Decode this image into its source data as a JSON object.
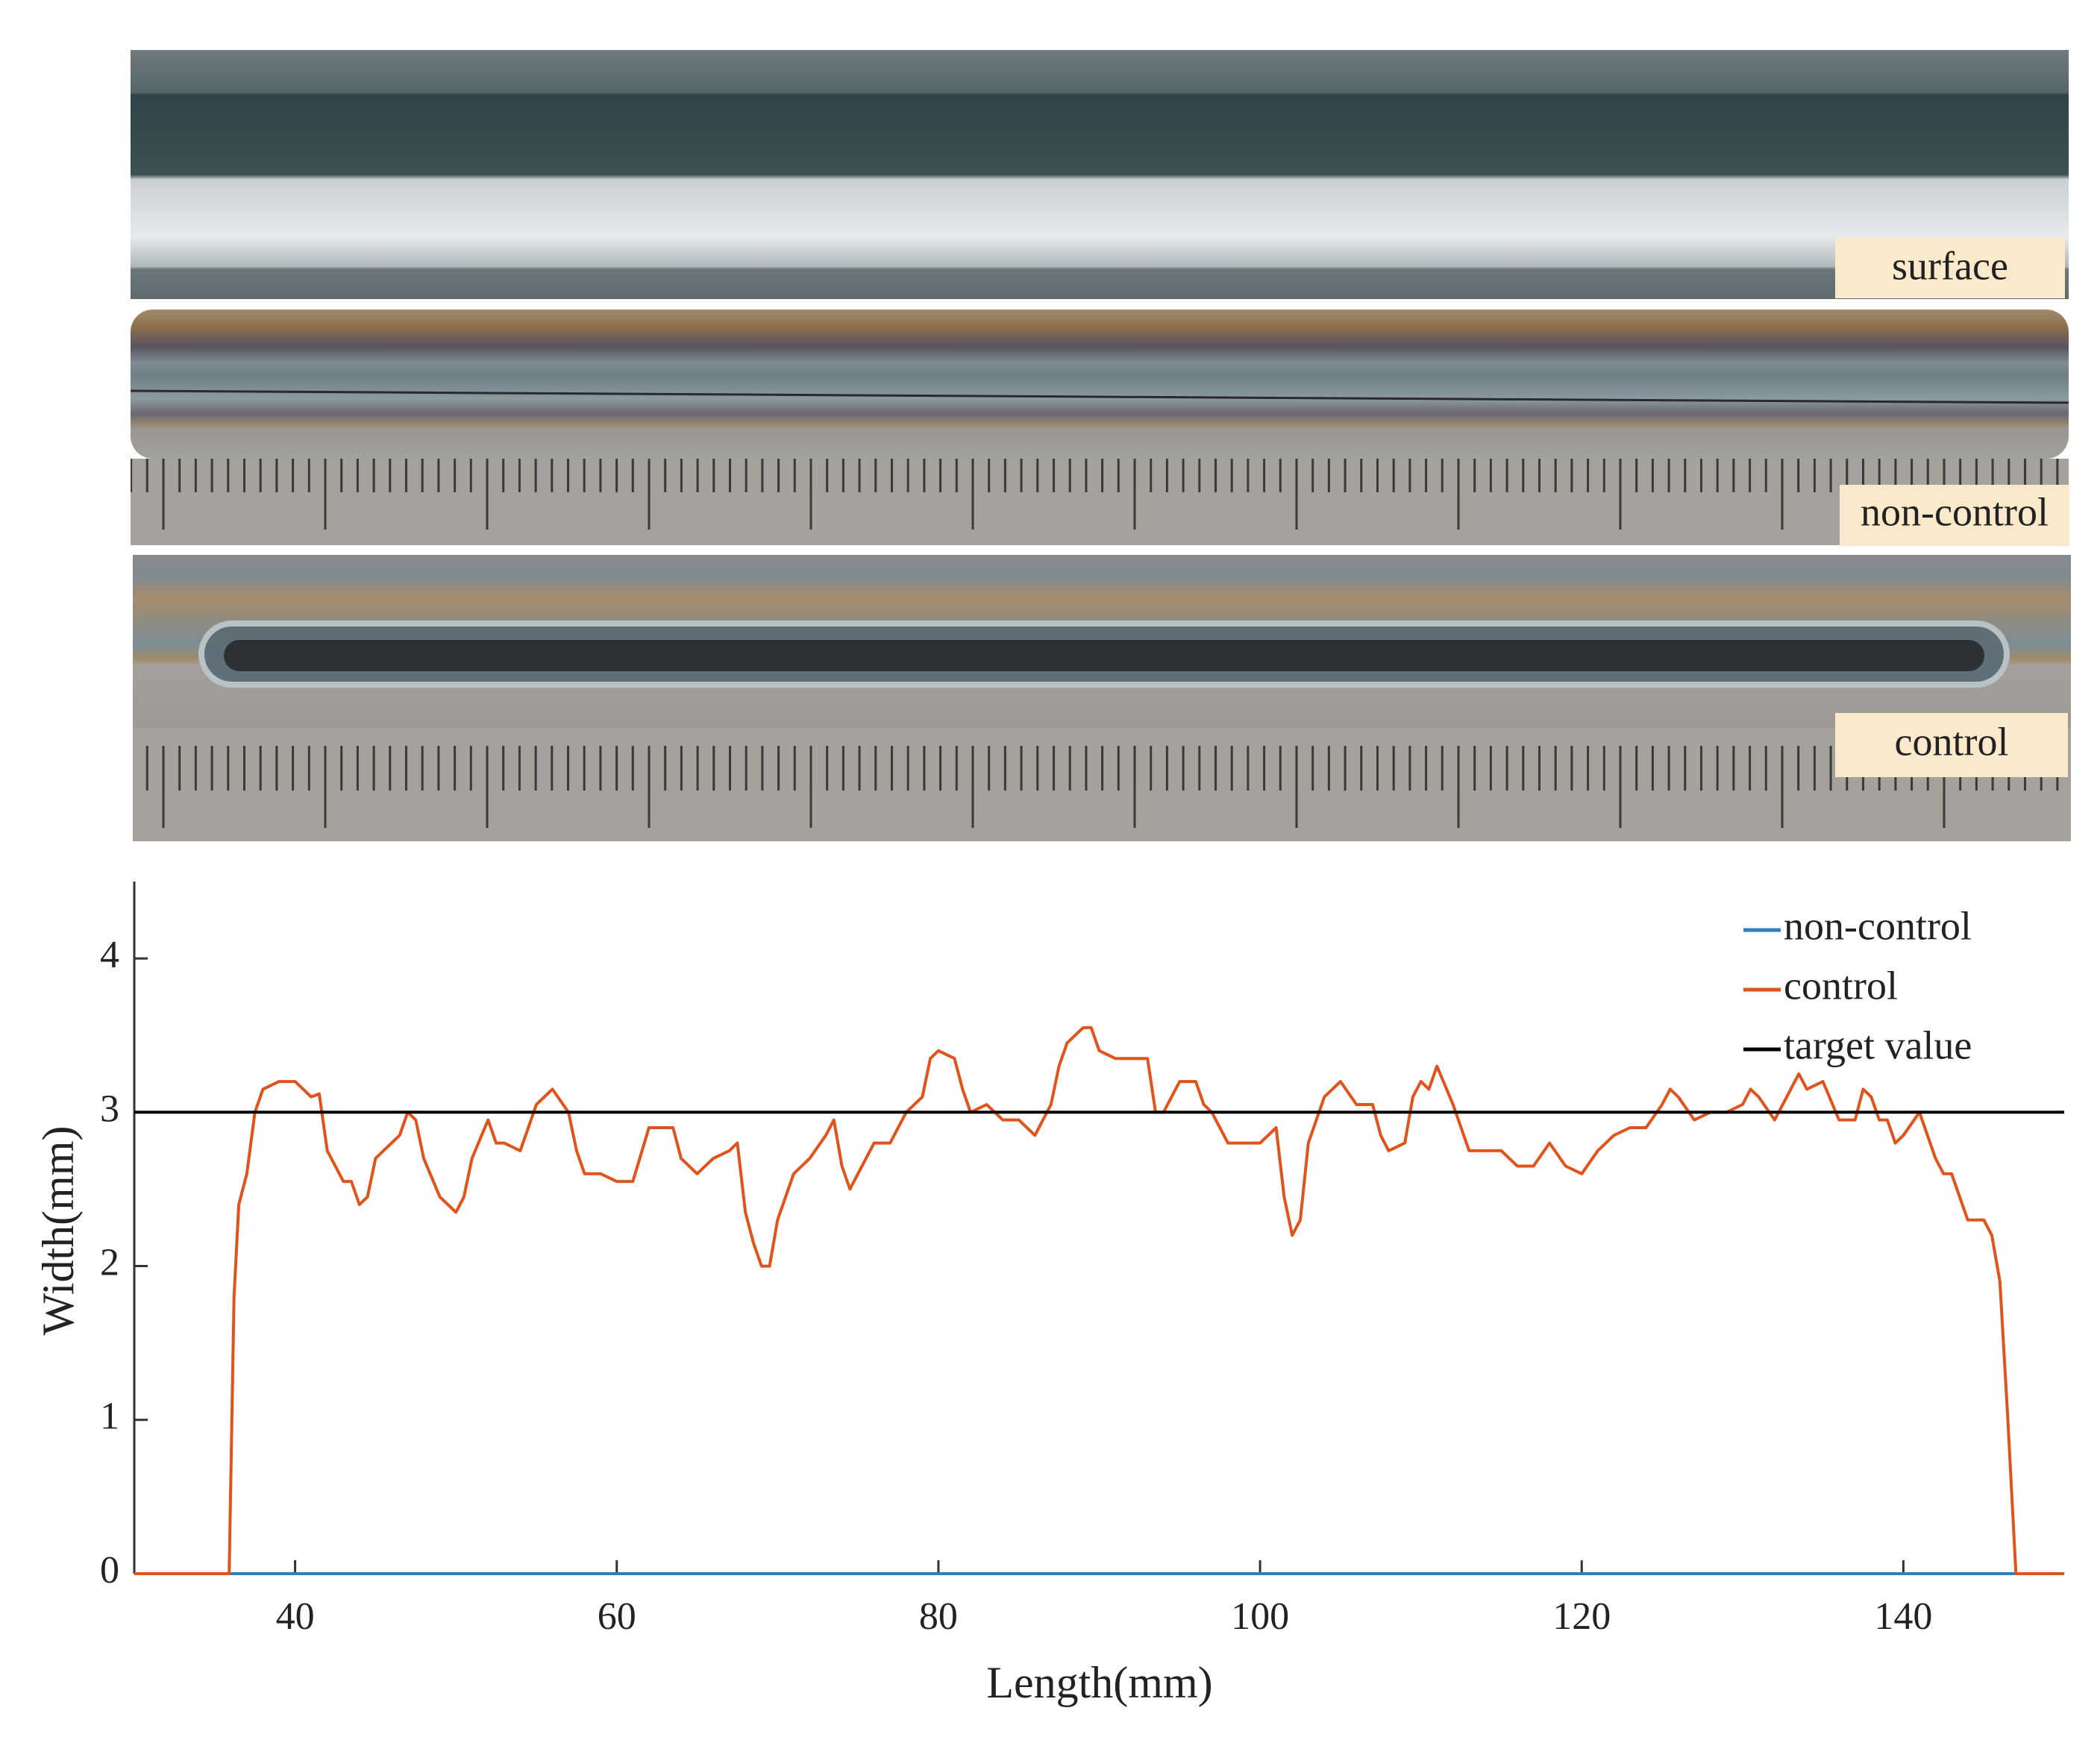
{
  "photo_labels": [
    "surface",
    "non-control",
    "control"
  ],
  "chart_data": {
    "type": "line",
    "xlabel": "Length(mm)",
    "ylabel": "Width(mm)",
    "xlim": [
      30,
      150
    ],
    "ylim": [
      0,
      4.5
    ],
    "xticks": [
      40,
      60,
      80,
      100,
      120,
      140
    ],
    "yticks": [
      0,
      1,
      2,
      3,
      4
    ],
    "legend": "upper right",
    "series": [
      {
        "name": "non-control",
        "color": "#2f7fc1",
        "x": [
          30,
          150
        ],
        "values": [
          0,
          0
        ]
      },
      {
        "name": "control",
        "color": "#e0541c",
        "x": [
          30,
          35.9,
          36.2,
          36.5,
          37,
          37.5,
          38,
          39,
          40,
          41,
          41.5,
          42,
          43,
          43.5,
          44,
          44.5,
          45,
          46,
          46.5,
          47,
          47.5,
          48,
          49,
          50,
          50.5,
          51,
          52,
          52.5,
          53,
          54,
          54.5,
          55,
          56,
          57,
          57.5,
          58,
          59,
          60,
          61,
          62,
          63,
          63.5,
          64,
          65,
          66,
          67,
          67.5,
          68,
          68.5,
          69,
          69.5,
          70,
          71,
          72,
          73,
          73.5,
          74,
          74.5,
          75,
          76,
          77,
          78,
          79,
          79.5,
          80,
          81,
          81.5,
          82,
          83,
          84,
          85,
          86,
          87,
          87.5,
          88,
          89,
          89.5,
          90,
          91,
          92,
          93,
          93.5,
          94,
          95,
          96,
          96.5,
          97,
          98,
          99,
          100,
          101,
          101.5,
          102,
          102.5,
          103,
          104,
          105,
          106,
          107,
          107.5,
          108,
          109,
          109.5,
          110,
          110.5,
          111,
          112,
          113,
          114,
          115,
          116,
          117,
          118,
          119,
          120,
          121,
          122,
          123,
          124,
          125,
          125.5,
          126,
          127,
          128,
          129,
          130,
          130.5,
          131,
          132,
          133,
          133.5,
          134,
          135,
          136,
          137,
          137.5,
          138,
          138.5,
          139,
          139.5,
          140,
          141,
          142,
          142.5,
          143,
          143.5,
          144,
          145,
          145.5,
          146,
          146.5,
          147,
          150
        ],
        "values": [
          0,
          0,
          1.8,
          2.4,
          2.6,
          3.0,
          3.15,
          3.2,
          3.2,
          3.1,
          3.12,
          2.75,
          2.55,
          2.55,
          2.4,
          2.45,
          2.7,
          2.8,
          2.85,
          3.0,
          2.95,
          2.7,
          2.45,
          2.35,
          2.45,
          2.7,
          2.95,
          2.8,
          2.8,
          2.75,
          2.9,
          3.05,
          3.15,
          3.0,
          2.75,
          2.6,
          2.6,
          2.55,
          2.55,
          2.9,
          2.9,
          2.9,
          2.7,
          2.6,
          2.7,
          2.75,
          2.8,
          2.35,
          2.15,
          2.0,
          2.0,
          2.3,
          2.6,
          2.7,
          2.85,
          2.95,
          2.65,
          2.5,
          2.6,
          2.8,
          2.8,
          3.0,
          3.1,
          3.35,
          3.4,
          3.35,
          3.15,
          3.0,
          3.05,
          2.95,
          2.95,
          2.85,
          3.05,
          3.3,
          3.45,
          3.55,
          3.55,
          3.4,
          3.35,
          3.35,
          3.35,
          3.0,
          3.0,
          3.2,
          3.2,
          3.05,
          3.0,
          2.8,
          2.8,
          2.8,
          2.9,
          2.45,
          2.2,
          2.3,
          2.8,
          3.1,
          3.2,
          3.05,
          3.05,
          2.85,
          2.75,
          2.8,
          3.1,
          3.2,
          3.15,
          3.3,
          3.05,
          2.75,
          2.75,
          2.75,
          2.65,
          2.65,
          2.8,
          2.65,
          2.6,
          2.75,
          2.85,
          2.9,
          2.9,
          3.05,
          3.15,
          3.1,
          2.95,
          3.0,
          3.0,
          3.05,
          3.15,
          3.1,
          2.95,
          3.15,
          3.25,
          3.15,
          3.2,
          2.95,
          2.95,
          3.15,
          3.1,
          2.95,
          2.95,
          2.8,
          2.85,
          3.0,
          2.7,
          2.6,
          2.6,
          2.45,
          2.3,
          2.3,
          2.2,
          1.9,
          1.0,
          0,
          0
        ]
      },
      {
        "name": "target value",
        "color": "#000000",
        "x": [
          30,
          150
        ],
        "values": [
          3,
          3
        ]
      }
    ]
  }
}
